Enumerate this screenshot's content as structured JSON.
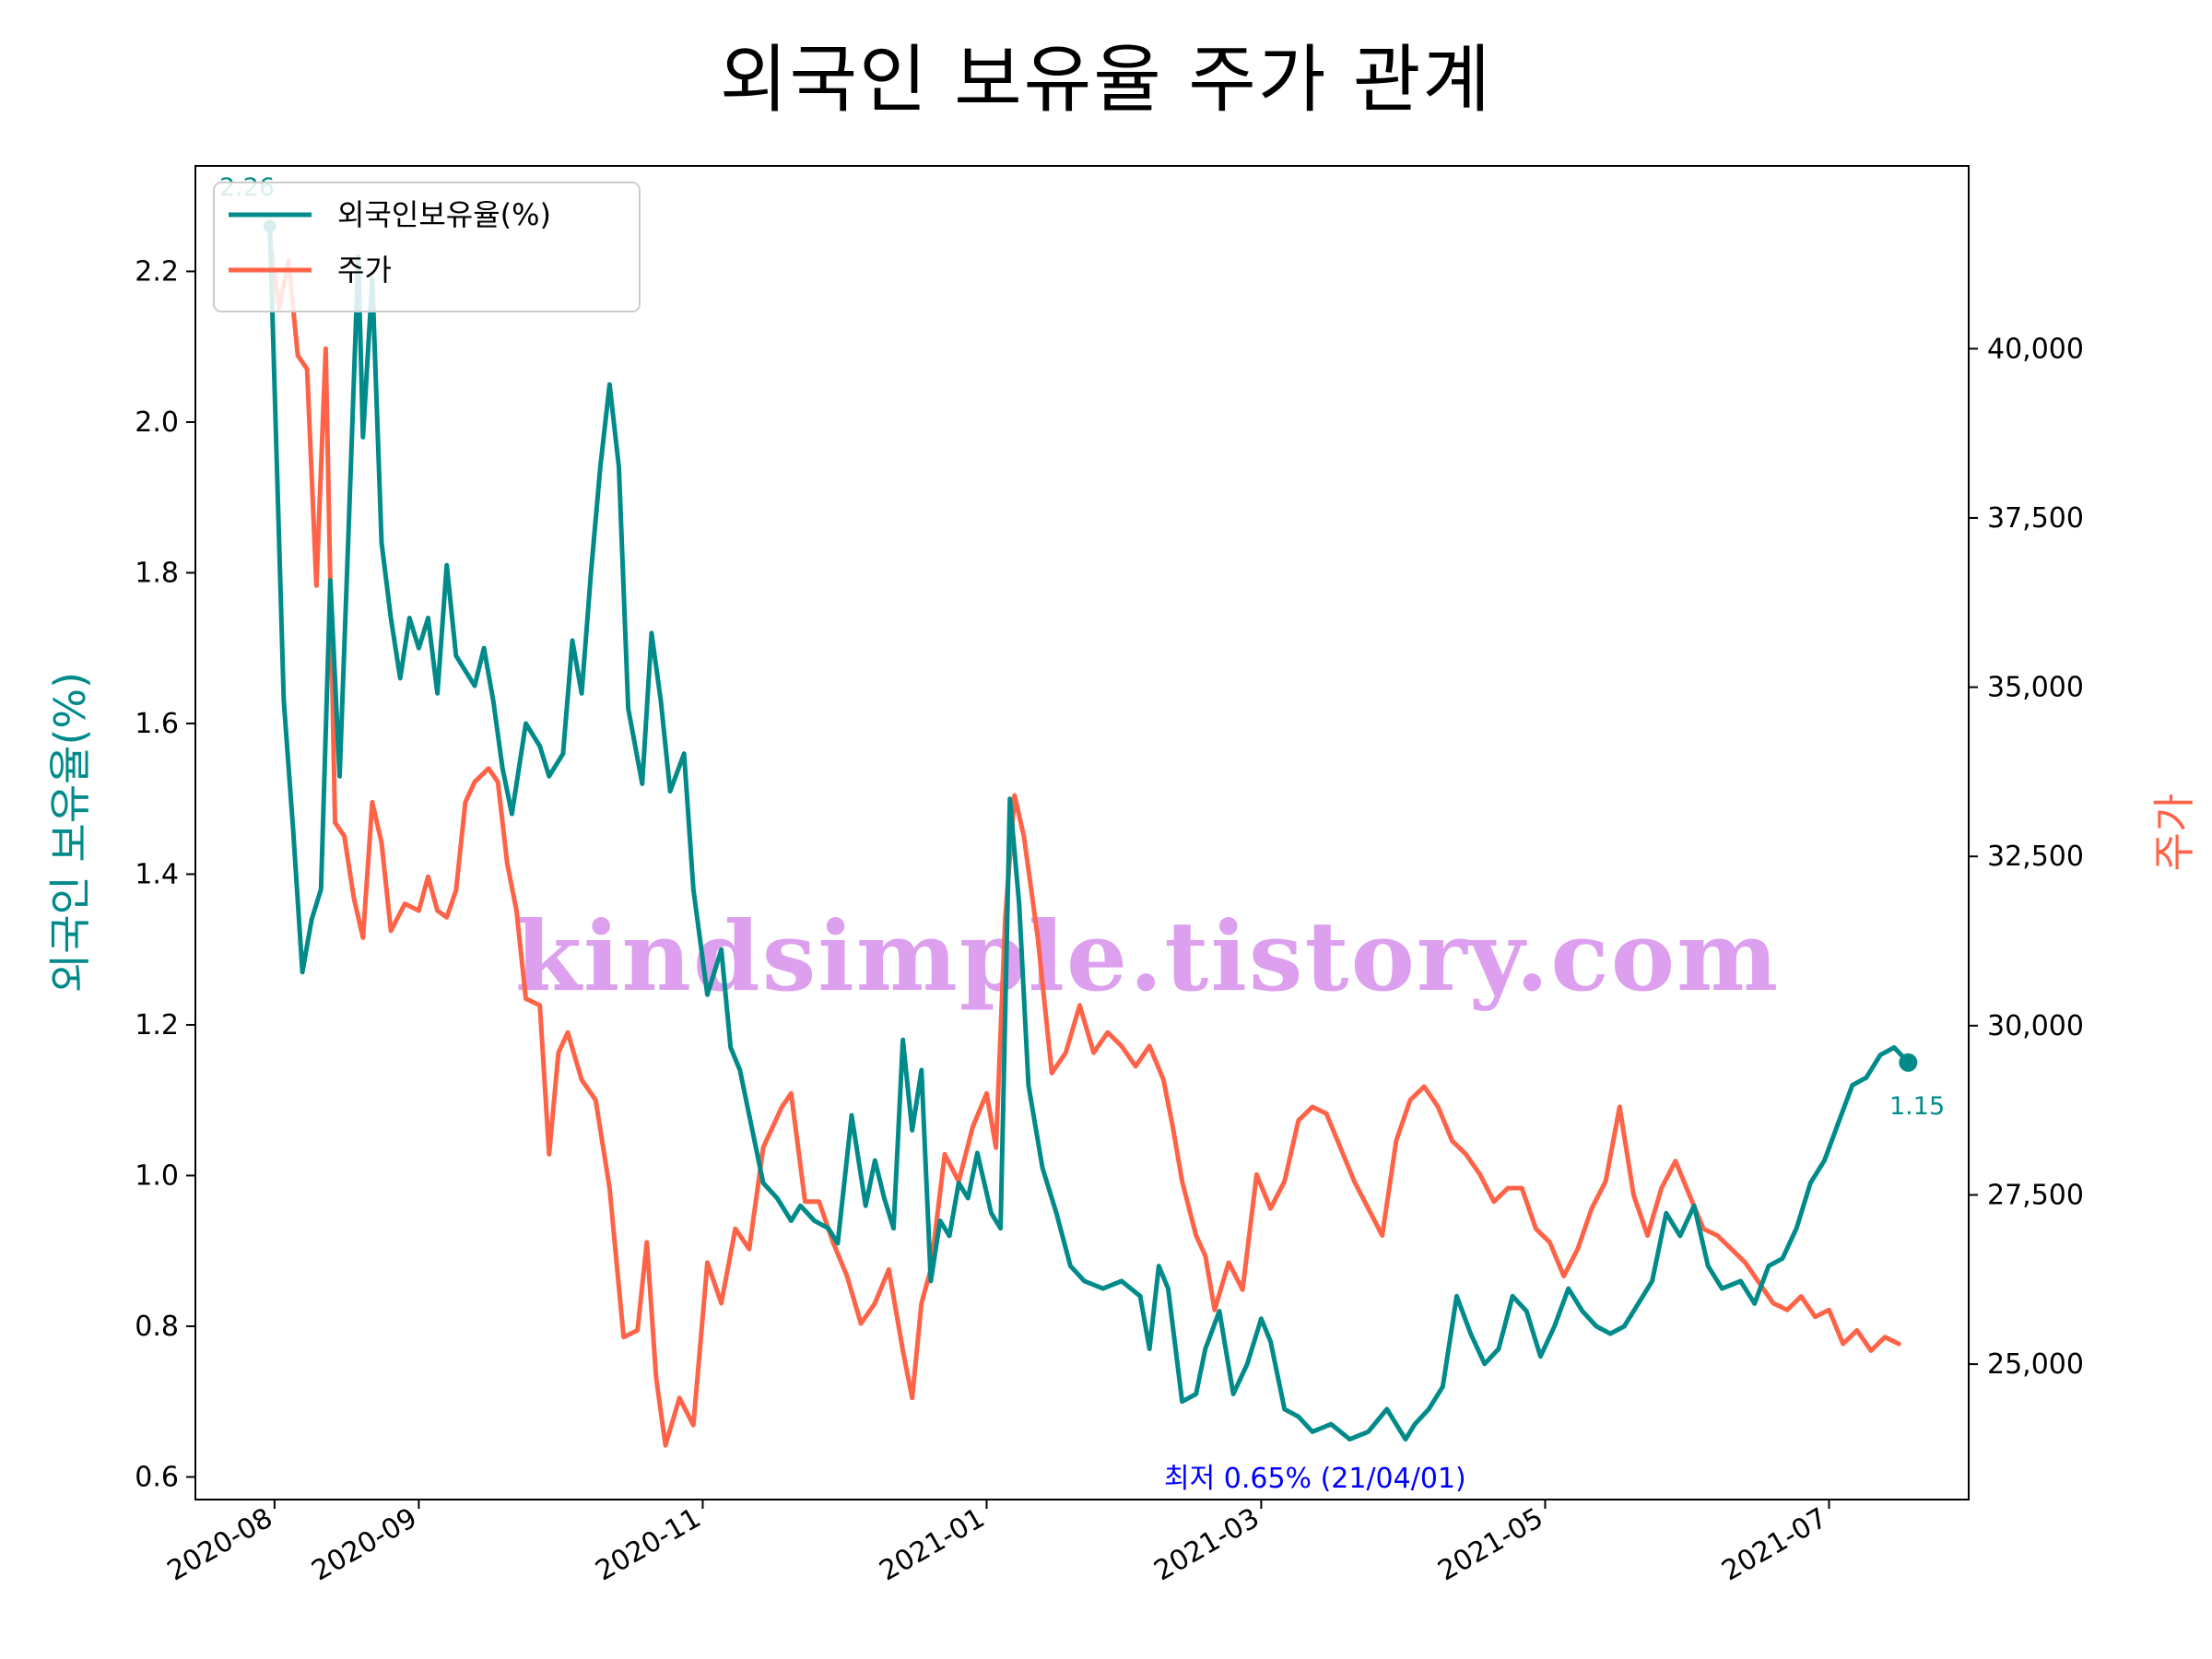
{
  "chart_data": {
    "type": "line",
    "title": "외국인 보유율 주가 관계",
    "ylabel_left": "외국인 보유율(%)",
    "ylabel_right": "주가",
    "x_range": [
      "2020-07-15",
      "2021-07-31"
    ],
    "y_left_range": [
      0.57,
      2.34
    ],
    "y_right_range": [
      23000,
      42700
    ],
    "x_ticks": [
      "2020-08",
      "2020-09",
      "2020-11",
      "2021-01",
      "2021-03",
      "2021-05",
      "2021-07"
    ],
    "y_left_ticks": [
      "0.6",
      "0.8",
      "1.0",
      "1.2",
      "1.4",
      "1.6",
      "1.8",
      "2.0",
      "2.2"
    ],
    "y_right_ticks": [
      "25,000",
      "27,500",
      "30,000",
      "32,500",
      "35,000",
      "37,500",
      "40,000"
    ],
    "legend": {
      "position": "upper left",
      "entries": [
        "외국인보유율(%)",
        "주가"
      ]
    },
    "colors": {
      "foreign": "#008b8a",
      "price": "#ff6347",
      "annotation": "#0000ff",
      "watermark": "#dda0ee"
    },
    "annotations": {
      "start_value": "2.26",
      "end_value": "1.15",
      "min_label": "최저 0.65% (21/04/01)"
    },
    "watermark": "kindsimple.tistory.com",
    "series": [
      {
        "name": "외국인보유율(%)",
        "axis": "left",
        "points": [
          [
            "2020-07-31",
            2.26
          ],
          [
            "2020-08-03",
            1.63
          ],
          [
            "2020-08-05",
            1.46
          ],
          [
            "2020-08-07",
            1.27
          ],
          [
            "2020-08-09",
            1.34
          ],
          [
            "2020-08-11",
            1.38
          ],
          [
            "2020-08-13",
            1.79
          ],
          [
            "2020-08-15",
            1.53
          ],
          [
            "2020-08-17",
            1.87
          ],
          [
            "2020-08-19",
            2.22
          ],
          [
            "2020-08-20",
            1.98
          ],
          [
            "2020-08-22",
            2.19
          ],
          [
            "2020-08-24",
            1.84
          ],
          [
            "2020-08-26",
            1.74
          ],
          [
            "2020-08-28",
            1.66
          ],
          [
            "2020-08-30",
            1.74
          ],
          [
            "2020-09-01",
            1.7
          ],
          [
            "2020-09-03",
            1.74
          ],
          [
            "2020-09-05",
            1.64
          ],
          [
            "2020-09-07",
            1.81
          ],
          [
            "2020-09-09",
            1.69
          ],
          [
            "2020-09-13",
            1.65
          ],
          [
            "2020-09-15",
            1.7
          ],
          [
            "2020-09-17",
            1.63
          ],
          [
            "2020-09-19",
            1.54
          ],
          [
            "2020-09-21",
            1.48
          ],
          [
            "2020-09-24",
            1.6
          ],
          [
            "2020-09-27",
            1.57
          ],
          [
            "2020-09-29",
            1.53
          ],
          [
            "2020-10-02",
            1.56
          ],
          [
            "2020-10-04",
            1.71
          ],
          [
            "2020-10-06",
            1.64
          ],
          [
            "2020-10-08",
            1.8
          ],
          [
            "2020-10-10",
            1.94
          ],
          [
            "2020-10-12",
            2.05
          ],
          [
            "2020-10-14",
            1.94
          ],
          [
            "2020-10-16",
            1.62
          ],
          [
            "2020-10-19",
            1.52
          ],
          [
            "2020-10-21",
            1.72
          ],
          [
            "2020-10-23",
            1.63
          ],
          [
            "2020-10-25",
            1.51
          ],
          [
            "2020-10-28",
            1.56
          ],
          [
            "2020-10-30",
            1.38
          ],
          [
            "2020-11-02",
            1.24
          ],
          [
            "2020-11-05",
            1.3
          ],
          [
            "2020-11-07",
            1.17
          ],
          [
            "2020-11-09",
            1.14
          ],
          [
            "2020-11-12",
            1.05
          ],
          [
            "2020-11-14",
            0.99
          ],
          [
            "2020-11-17",
            0.97
          ],
          [
            "2020-11-20",
            0.94
          ],
          [
            "2020-11-22",
            0.96
          ],
          [
            "2020-11-25",
            0.94
          ],
          [
            "2020-11-28",
            0.93
          ],
          [
            "2020-11-30",
            0.91
          ],
          [
            "2020-12-03",
            1.08
          ],
          [
            "2020-12-06",
            0.96
          ],
          [
            "2020-12-08",
            1.02
          ],
          [
            "2020-12-10",
            0.97
          ],
          [
            "2020-12-12",
            0.93
          ],
          [
            "2020-12-14",
            1.18
          ],
          [
            "2020-12-16",
            1.06
          ],
          [
            "2020-12-18",
            1.14
          ],
          [
            "2020-12-20",
            0.86
          ],
          [
            "2020-12-22",
            0.94
          ],
          [
            "2020-12-24",
            0.92
          ],
          [
            "2020-12-26",
            0.99
          ],
          [
            "2020-12-28",
            0.97
          ],
          [
            "2020-12-30",
            1.03
          ],
          [
            "2021-01-02",
            0.95
          ],
          [
            "2021-01-04",
            0.93
          ],
          [
            "2021-01-06",
            1.5
          ],
          [
            "2021-01-08",
            1.36
          ],
          [
            "2021-01-10",
            1.12
          ],
          [
            "2021-01-13",
            1.01
          ],
          [
            "2021-01-16",
            0.95
          ],
          [
            "2021-01-19",
            0.88
          ],
          [
            "2021-01-22",
            0.86
          ],
          [
            "2021-01-26",
            0.85
          ],
          [
            "2021-01-30",
            0.86
          ],
          [
            "2021-02-03",
            0.84
          ],
          [
            "2021-02-05",
            0.77
          ],
          [
            "2021-02-07",
            0.88
          ],
          [
            "2021-02-09",
            0.85
          ],
          [
            "2021-02-12",
            0.7
          ],
          [
            "2021-02-15",
            0.71
          ],
          [
            "2021-02-17",
            0.77
          ],
          [
            "2021-02-20",
            0.82
          ],
          [
            "2021-02-23",
            0.71
          ],
          [
            "2021-02-26",
            0.75
          ],
          [
            "2021-03-01",
            0.81
          ],
          [
            "2021-03-03",
            0.78
          ],
          [
            "2021-03-06",
            0.69
          ],
          [
            "2021-03-09",
            0.68
          ],
          [
            "2021-03-12",
            0.66
          ],
          [
            "2021-03-16",
            0.67
          ],
          [
            "2021-03-20",
            0.65
          ],
          [
            "2021-03-24",
            0.66
          ],
          [
            "2021-03-28",
            0.69
          ],
          [
            "2021-04-01",
            0.65
          ],
          [
            "2021-04-03",
            0.67
          ],
          [
            "2021-04-06",
            0.69
          ],
          [
            "2021-04-09",
            0.72
          ],
          [
            "2021-04-12",
            0.84
          ],
          [
            "2021-04-15",
            0.79
          ],
          [
            "2021-04-18",
            0.75
          ],
          [
            "2021-04-21",
            0.77
          ],
          [
            "2021-04-24",
            0.84
          ],
          [
            "2021-04-27",
            0.82
          ],
          [
            "2021-04-30",
            0.76
          ],
          [
            "2021-05-03",
            0.8
          ],
          [
            "2021-05-06",
            0.85
          ],
          [
            "2021-05-09",
            0.82
          ],
          [
            "2021-05-12",
            0.8
          ],
          [
            "2021-05-15",
            0.79
          ],
          [
            "2021-05-18",
            0.8
          ],
          [
            "2021-05-21",
            0.83
          ],
          [
            "2021-05-24",
            0.86
          ],
          [
            "2021-05-27",
            0.95
          ],
          [
            "2021-05-30",
            0.92
          ],
          [
            "2021-06-02",
            0.96
          ],
          [
            "2021-06-05",
            0.88
          ],
          [
            "2021-06-08",
            0.85
          ],
          [
            "2021-06-12",
            0.86
          ],
          [
            "2021-06-15",
            0.83
          ],
          [
            "2021-06-18",
            0.88
          ],
          [
            "2021-06-21",
            0.89
          ],
          [
            "2021-06-24",
            0.93
          ],
          [
            "2021-06-27",
            0.99
          ],
          [
            "2021-06-30",
            1.02
          ],
          [
            "2021-07-03",
            1.07
          ],
          [
            "2021-07-06",
            1.12
          ],
          [
            "2021-07-09",
            1.13
          ],
          [
            "2021-07-12",
            1.16
          ],
          [
            "2021-07-15",
            1.17
          ],
          [
            "2021-07-18",
            1.15
          ]
        ]
      },
      {
        "name": "주가",
        "axis": "right",
        "points": [
          [
            "2020-07-31",
            41600
          ],
          [
            "2020-08-02",
            40600
          ],
          [
            "2020-08-04",
            41300
          ],
          [
            "2020-08-06",
            39900
          ],
          [
            "2020-08-08",
            39700
          ],
          [
            "2020-08-10",
            36500
          ],
          [
            "2020-08-12",
            40000
          ],
          [
            "2020-08-14",
            33000
          ],
          [
            "2020-08-16",
            32800
          ],
          [
            "2020-08-18",
            31900
          ],
          [
            "2020-08-20",
            31300
          ],
          [
            "2020-08-22",
            33300
          ],
          [
            "2020-08-24",
            32700
          ],
          [
            "2020-08-26",
            31400
          ],
          [
            "2020-08-29",
            31800
          ],
          [
            "2020-09-01",
            31700
          ],
          [
            "2020-09-03",
            32200
          ],
          [
            "2020-09-05",
            31700
          ],
          [
            "2020-09-07",
            31600
          ],
          [
            "2020-09-09",
            32000
          ],
          [
            "2020-09-11",
            33300
          ],
          [
            "2020-09-13",
            33600
          ],
          [
            "2020-09-16",
            33800
          ],
          [
            "2020-09-18",
            33600
          ],
          [
            "2020-09-20",
            32400
          ],
          [
            "2020-09-22",
            31700
          ],
          [
            "2020-09-24",
            30400
          ],
          [
            "2020-09-27",
            30300
          ],
          [
            "2020-09-29",
            28100
          ],
          [
            "2020-10-01",
            29600
          ],
          [
            "2020-10-03",
            29900
          ],
          [
            "2020-10-06",
            29200
          ],
          [
            "2020-10-09",
            28900
          ],
          [
            "2020-10-12",
            27600
          ],
          [
            "2020-10-15",
            25400
          ],
          [
            "2020-10-18",
            25500
          ],
          [
            "2020-10-20",
            26800
          ],
          [
            "2020-10-22",
            24800
          ],
          [
            "2020-10-24",
            23800
          ],
          [
            "2020-10-27",
            24500
          ],
          [
            "2020-10-30",
            24100
          ],
          [
            "2020-11-02",
            26500
          ],
          [
            "2020-11-05",
            25900
          ],
          [
            "2020-11-08",
            27000
          ],
          [
            "2020-11-11",
            26700
          ],
          [
            "2020-11-14",
            28200
          ],
          [
            "2020-11-18",
            28800
          ],
          [
            "2020-11-20",
            29000
          ],
          [
            "2020-11-23",
            27400
          ],
          [
            "2020-11-26",
            27400
          ],
          [
            "2020-11-29",
            26800
          ],
          [
            "2020-12-02",
            26300
          ],
          [
            "2020-12-05",
            25600
          ],
          [
            "2020-12-08",
            25900
          ],
          [
            "2020-12-11",
            26400
          ],
          [
            "2020-12-14",
            25200
          ],
          [
            "2020-12-16",
            24500
          ],
          [
            "2020-12-18",
            25900
          ],
          [
            "2020-12-20",
            26400
          ],
          [
            "2020-12-23",
            28100
          ],
          [
            "2020-12-26",
            27700
          ],
          [
            "2020-12-29",
            28500
          ],
          [
            "2021-01-01",
            29000
          ],
          [
            "2021-01-03",
            28200
          ],
          [
            "2021-01-05",
            31600
          ],
          [
            "2021-01-07",
            33400
          ],
          [
            "2021-01-09",
            32800
          ],
          [
            "2021-01-12",
            31300
          ],
          [
            "2021-01-15",
            29300
          ],
          [
            "2021-01-18",
            29600
          ],
          [
            "2021-01-21",
            30300
          ],
          [
            "2021-01-24",
            29600
          ],
          [
            "2021-01-27",
            29900
          ],
          [
            "2021-01-30",
            29700
          ],
          [
            "2021-02-02",
            29400
          ],
          [
            "2021-02-05",
            29700
          ],
          [
            "2021-02-08",
            29200
          ],
          [
            "2021-02-10",
            28500
          ],
          [
            "2021-02-12",
            27700
          ],
          [
            "2021-02-15",
            26900
          ],
          [
            "2021-02-17",
            26600
          ],
          [
            "2021-02-19",
            25800
          ],
          [
            "2021-02-22",
            26500
          ],
          [
            "2021-02-25",
            26100
          ],
          [
            "2021-02-28",
            27800
          ],
          [
            "2021-03-03",
            27300
          ],
          [
            "2021-03-06",
            27700
          ],
          [
            "2021-03-09",
            28600
          ],
          [
            "2021-03-12",
            28800
          ],
          [
            "2021-03-15",
            28700
          ],
          [
            "2021-03-18",
            28200
          ],
          [
            "2021-03-21",
            27700
          ],
          [
            "2021-03-24",
            27300
          ],
          [
            "2021-03-27",
            26900
          ],
          [
            "2021-03-30",
            28300
          ],
          [
            "2021-04-02",
            28900
          ],
          [
            "2021-04-05",
            29100
          ],
          [
            "2021-04-08",
            28800
          ],
          [
            "2021-04-11",
            28300
          ],
          [
            "2021-04-14",
            28100
          ],
          [
            "2021-04-17",
            27800
          ],
          [
            "2021-04-20",
            27400
          ],
          [
            "2021-04-23",
            27600
          ],
          [
            "2021-04-26",
            27600
          ],
          [
            "2021-04-29",
            27000
          ],
          [
            "2021-05-02",
            26800
          ],
          [
            "2021-05-05",
            26300
          ],
          [
            "2021-05-08",
            26700
          ],
          [
            "2021-05-11",
            27300
          ],
          [
            "2021-05-14",
            27700
          ],
          [
            "2021-05-17",
            28800
          ],
          [
            "2021-05-20",
            27500
          ],
          [
            "2021-05-23",
            26900
          ],
          [
            "2021-05-26",
            27600
          ],
          [
            "2021-05-29",
            28000
          ],
          [
            "2021-06-01",
            27500
          ],
          [
            "2021-06-04",
            27000
          ],
          [
            "2021-06-07",
            26900
          ],
          [
            "2021-06-10",
            26700
          ],
          [
            "2021-06-13",
            26500
          ],
          [
            "2021-06-16",
            26200
          ],
          [
            "2021-06-19",
            25900
          ],
          [
            "2021-06-22",
            25800
          ],
          [
            "2021-06-25",
            26000
          ],
          [
            "2021-06-28",
            25700
          ],
          [
            "2021-07-01",
            25800
          ],
          [
            "2021-07-04",
            25300
          ],
          [
            "2021-07-07",
            25500
          ],
          [
            "2021-07-10",
            25200
          ],
          [
            "2021-07-13",
            25400
          ],
          [
            "2021-07-16",
            25300
          ]
        ]
      }
    ]
  }
}
